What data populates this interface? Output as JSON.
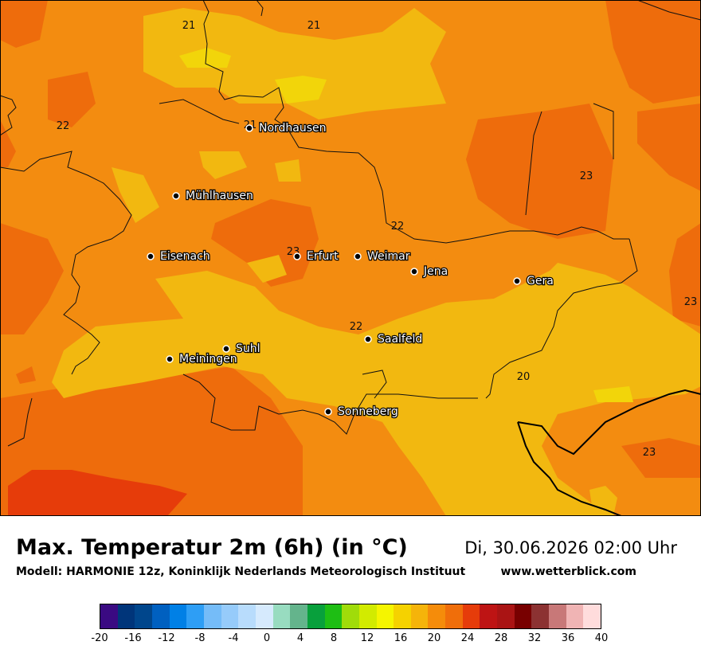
{
  "title": "Max. Temperatur 2m (6h) (in °C)",
  "subtitle": "Modell: HARMONIE 12z, Koninklijk Nederlands Meteorologisch Instituut",
  "datetime": "Di, 30.06.2026 02:00 Uhr",
  "website": "www.wetterblick.com",
  "cities": [
    {
      "name": "Nordhausen"
    },
    {
      "name": "Mühlhausen"
    },
    {
      "name": "Eisenach"
    },
    {
      "name": "Erfurt"
    },
    {
      "name": "Weimar"
    },
    {
      "name": "Jena"
    },
    {
      "name": "Gera"
    },
    {
      "name": "Suhl"
    },
    {
      "name": "Meiningen"
    },
    {
      "name": "Saalfeld"
    },
    {
      "name": "Sonneberg"
    }
  ],
  "contour_labels": [
    "21",
    "21",
    "22",
    "21",
    "23",
    "23",
    "22",
    "23",
    "22",
    "20",
    "23"
  ],
  "legend": {
    "ticks": [
      "-20",
      "-16",
      "-12",
      "-8",
      "-4",
      "0",
      "4",
      "8",
      "12",
      "16",
      "20",
      "24",
      "28",
      "32",
      "36",
      "40"
    ],
    "colors": [
      "#3a0a82",
      "#00357a",
      "#00468c",
      "#0060c0",
      "#0080e6",
      "#2e9ef5",
      "#75bcf8",
      "#96cbfa",
      "#b8dcfc",
      "#d6eafd",
      "#98dcc0",
      "#64b48c",
      "#08a03c",
      "#1ebe14",
      "#a0dc0a",
      "#d2eb00",
      "#f5f500",
      "#f5d200",
      "#f5b40a",
      "#f58c0a",
      "#f06e0a",
      "#e63c0a",
      "#be1414",
      "#aa1414",
      "#780000",
      "#8c3232",
      "#c87878",
      "#f0b4b4",
      "#ffdcdc"
    ]
  },
  "colors": {
    "warm_orange": "#f38c10",
    "deep_orange": "#ee6c0c",
    "yellow_orange": "#f2b810",
    "yellow": "#f2d50a",
    "red_orange": "#e63c0a"
  }
}
